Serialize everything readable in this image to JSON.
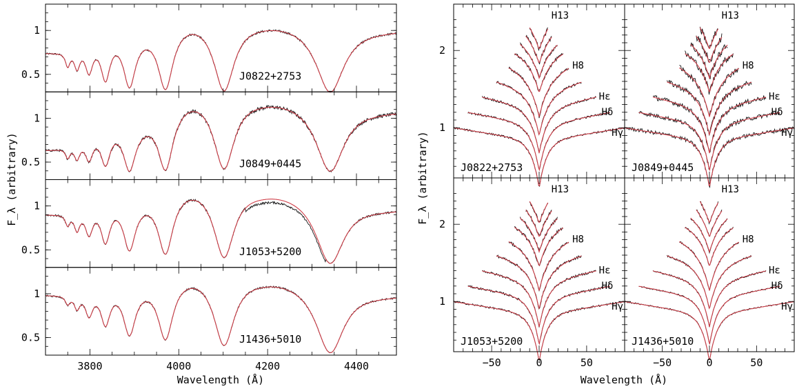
{
  "figure": {
    "left_ylabel": "F_λ (arbitrary)",
    "right_ylabel": "F_λ (arbitrary)",
    "left_xlabel": "Wavelength (Å)",
    "right_xlabel": "Wavelength (Å)"
  },
  "colors": {
    "observed": "#111111",
    "model": "#d0404a"
  },
  "chart_data": [
    {
      "type": "line",
      "panel": "left",
      "xlabel": "Wavelength (Å)",
      "ylabel": "F_λ (arbitrary)",
      "xlim": [
        3700,
        4490
      ],
      "xticks": [
        3800,
        4000,
        4200,
        4400
      ],
      "xtick_labels": [
        "3800",
        "4000",
        "4200",
        "4400"
      ],
      "ylim": [
        0.3,
        1.3
      ],
      "yticks": [
        0.5,
        1.0
      ],
      "ytick_labels": [
        "0.5",
        "1"
      ],
      "balmer_lines_angstrom": [
        3750,
        3771,
        3798,
        3835,
        3889,
        3970,
        4102,
        4341
      ],
      "stars": [
        {
          "name": "J0822+2753",
          "line_depth": [
            0.22,
            0.28,
            0.38,
            0.52,
            0.62,
            0.68,
            0.72,
            0.72
          ],
          "continuum": [
            0.76,
            1.0,
            1.17,
            1.12,
            1.02
          ],
          "noise": 0.012
        },
        {
          "name": "J0849+0445",
          "line_depth": [
            0.18,
            0.24,
            0.32,
            0.45,
            0.55,
            0.62,
            0.66,
            0.66
          ],
          "continuum": [
            0.65,
            0.95,
            1.3,
            1.25,
            1.1
          ],
          "noise": 0.02
        },
        {
          "name": "J1053+5200",
          "line_depth": [
            0.14,
            0.22,
            0.3,
            0.42,
            0.52,
            0.6,
            0.66,
            0.68
          ],
          "continuum": [
            0.92,
            1.1,
            1.28,
            1.2,
            0.98
          ],
          "noise": 0.012
        },
        {
          "name": "J1436+5010",
          "line_depth": [
            0.1,
            0.16,
            0.26,
            0.38,
            0.5,
            0.58,
            0.66,
            0.7
          ],
          "continuum": [
            1.0,
            1.12,
            1.27,
            1.2,
            1.0
          ],
          "noise": 0.01
        }
      ]
    },
    {
      "type": "line",
      "panel": "right",
      "xlabel": "Wavelength (Å)",
      "ylabel": "F_λ (arbitrary)",
      "xlim": [
        -90,
        90
      ],
      "xticks": [
        -50,
        0,
        50
      ],
      "xtick_labels": [
        "−50",
        "0",
        "50"
      ],
      "ylim": [
        0.35,
        2.6
      ],
      "yticks": [
        1,
        2
      ],
      "ytick_labels": [
        "1",
        "2"
      ],
      "line_labels": [
        "H13",
        "H8",
        "Hε",
        "Hδ",
        "Hγ"
      ],
      "stars": [
        {
          "name": "J0822+2753",
          "noise": 0.012
        },
        {
          "name": "J0849+0445",
          "noise": 0.025
        },
        {
          "name": "J1053+5200",
          "noise": 0.012
        },
        {
          "name": "J1436+5010",
          "noise": 0.008
        }
      ]
    }
  ]
}
